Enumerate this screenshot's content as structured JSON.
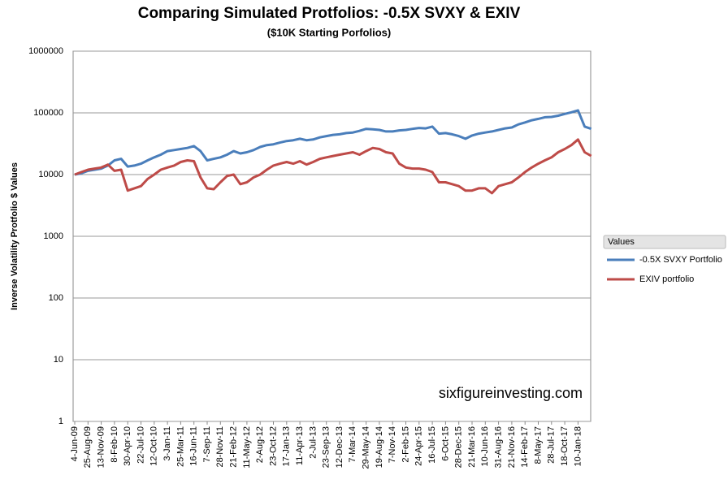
{
  "chart_data": {
    "type": "line",
    "title": "Comparing Simulated Protfolios: -0.5X SVXY & EXIV",
    "subtitle": "($10K Starting Porfolios)",
    "y_label": "Inverse Volatility Protfolio $ Values",
    "annotation": "sixfigureinvesting.com",
    "legend_title": "Values",
    "legend": "right",
    "log_scale": true,
    "grid": true,
    "categories": [
      "4-Jun-09",
      null,
      "25-Aug-09",
      null,
      "13-Nov-09",
      null,
      "8-Feb-10",
      null,
      "30-Apr-10",
      null,
      "22-Jul-10",
      null,
      "12-Oct-10",
      null,
      "3-Jan-11",
      null,
      "25-Mar-11",
      null,
      "16-Jun-11",
      null,
      "7-Sep-11",
      null,
      "28-Nov-11",
      null,
      "21-Feb-12",
      null,
      "11-May-12",
      null,
      "2-Aug-12",
      null,
      "23-Oct-12",
      null,
      "17-Jan-13",
      null,
      "11-Apr-13",
      null,
      "2-Jul-13",
      null,
      "23-Sep-13",
      null,
      "12-Dec-13",
      null,
      "7-Mar-14",
      null,
      "29-May-14",
      null,
      "19-Aug-14",
      null,
      "7-Nov-14",
      null,
      "2-Feb-15",
      null,
      "24-Apr-15",
      null,
      "16-Jul-15",
      null,
      "6-Oct-15",
      null,
      "28-Dec-15",
      null,
      "21-Mar-16",
      null,
      "10-Jun-16",
      null,
      "31-Aug-16",
      null,
      "21-Nov-16",
      null,
      "14-Feb-17",
      null,
      "8-May-17",
      null,
      "28-Jul-17",
      null,
      "18-Oct-17",
      null,
      "10-Jan-18",
      null,
      null
    ],
    "series": [
      {
        "name": "-0.5X SVXY Portfolio",
        "color": "#4a7ebb",
        "values": [
          10000,
          10500,
          11500,
          12000,
          12500,
          14000,
          17000,
          18000,
          13500,
          14000,
          15000,
          17000,
          19000,
          21000,
          24000,
          25000,
          26000,
          27000,
          29000,
          24000,
          17000,
          18000,
          19000,
          21000,
          24000,
          22000,
          23000,
          25000,
          28000,
          30000,
          31000,
          33000,
          35000,
          36000,
          38000,
          36000,
          37000,
          40000,
          42000,
          44000,
          45000,
          47000,
          48000,
          51000,
          55000,
          54000,
          53000,
          50000,
          50000,
          52000,
          53000,
          55000,
          57000,
          56000,
          60000,
          46000,
          47000,
          45000,
          42000,
          38000,
          43000,
          46000,
          48000,
          50000,
          53000,
          56000,
          58000,
          65000,
          70000,
          76000,
          80000,
          85000,
          86000,
          90000,
          96000,
          102000,
          110000,
          60000,
          55000
        ]
      },
      {
        "name": "EXIV portfolio",
        "color": "#be4b48",
        "values": [
          10000,
          11000,
          12000,
          12500,
          13000,
          14500,
          11500,
          12000,
          5500,
          6000,
          6500,
          8500,
          10000,
          12000,
          13000,
          14000,
          16000,
          17000,
          16500,
          9000,
          6000,
          5800,
          7500,
          9500,
          10000,
          7000,
          7500,
          9000,
          10000,
          12000,
          14000,
          15000,
          16000,
          15000,
          16500,
          14500,
          16000,
          18000,
          19000,
          20000,
          21000,
          22000,
          23000,
          21000,
          24000,
          27000,
          26000,
          23000,
          22000,
          15000,
          13000,
          12500,
          12500,
          12000,
          11000,
          7500,
          7500,
          7000,
          6500,
          5500,
          5500,
          6000,
          6000,
          5000,
          6500,
          7000,
          7500,
          9000,
          11000,
          13000,
          15000,
          17000,
          19000,
          23000,
          26000,
          30000,
          37000,
          23000,
          20000
        ]
      }
    ],
    "ylim": [
      1,
      1000000
    ],
    "yticks": [
      1,
      10,
      100,
      1000,
      10000,
      100000,
      1000000
    ]
  }
}
